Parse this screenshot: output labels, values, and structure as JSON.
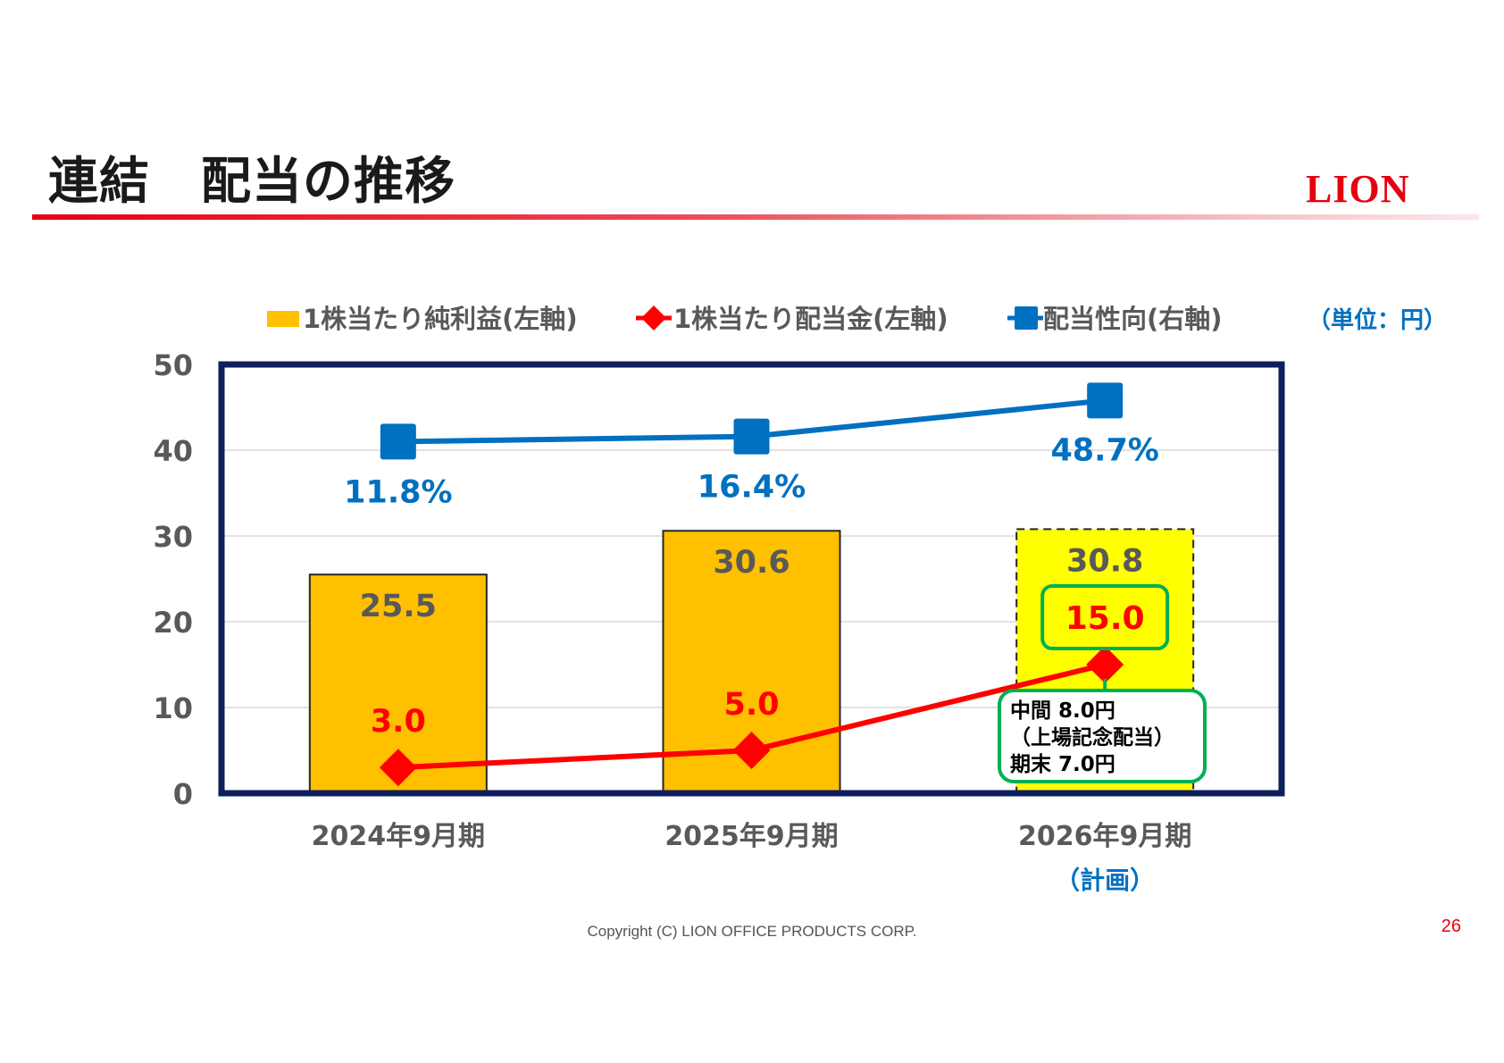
{
  "header": {
    "title": "連結　配当の推移",
    "logo_text": "LION"
  },
  "footer": {
    "copyright": "Copyright (C) LION OFFICE PRODUCTS CORP.",
    "page_number": "26"
  },
  "colors": {
    "brand_red": "#e60012",
    "bar_fill": "#ffc000",
    "bar_plan_fill": "#ffff00",
    "dividend_line": "#ff0000",
    "payout_line": "#0070c0",
    "frame": "#0d1f5c",
    "callout_border": "#00b050",
    "axis_text": "#595959"
  },
  "chart_data": {
    "type": "bar",
    "categories": [
      "2024年9月期",
      "2025年9月期",
      "2026年9月期"
    ],
    "category_sublabels": [
      "",
      "",
      "（計画）"
    ],
    "unit_label": "（単位：円）",
    "ylim": [
      0,
      50
    ],
    "yticks": [
      0,
      10,
      20,
      30,
      40,
      50
    ],
    "grid": true,
    "legend_position": "top",
    "series": [
      {
        "name": "1株当たり純利益(左軸)",
        "kind": "bar",
        "axis": "left",
        "values": [
          25.5,
          30.6,
          30.8
        ],
        "labels": [
          "25.5",
          "30.6",
          "30.8"
        ],
        "color": "#ffc000",
        "planned_index": 2
      },
      {
        "name": "1株当たり配当金(左軸)",
        "kind": "line",
        "marker": "diamond",
        "axis": "left",
        "values": [
          3.0,
          5.0,
          15.0
        ],
        "labels": [
          "3.0",
          "5.0",
          "15.0"
        ],
        "color": "#ff0000"
      },
      {
        "name": "配当性向(右軸)",
        "kind": "line",
        "marker": "square",
        "axis": "right",
        "values": [
          11.8,
          16.4,
          48.7
        ],
        "labels": [
          "11.8%",
          "16.4%",
          "48.7%"
        ],
        "plotted_left_axis_values": [
          41.0,
          41.6,
          45.8
        ],
        "color": "#0070c0"
      }
    ],
    "annotation": {
      "lines": [
        "中間  8.0円",
        "（上場記念配当）",
        "期末  7.0円"
      ]
    }
  }
}
